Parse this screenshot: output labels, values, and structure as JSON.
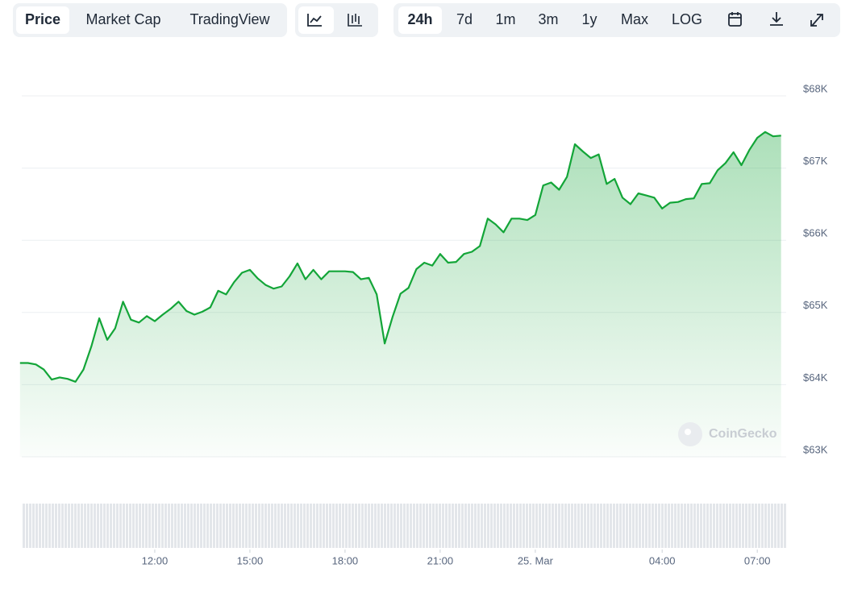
{
  "toolbar": {
    "views": [
      "Price",
      "Market Cap",
      "TradingView"
    ],
    "ranges": [
      "24h",
      "7d",
      "1m",
      "3m",
      "1y",
      "Max",
      "LOG"
    ]
  },
  "chart_data": {
    "type": "area",
    "watermark": "CoinGecko",
    "x": [
      7.75,
      8,
      8.25,
      8.5,
      8.75,
      9,
      9.25,
      9.5,
      9.75,
      10,
      10.25,
      10.5,
      10.75,
      11,
      11.25,
      11.5,
      11.75,
      12,
      12.25,
      12.5,
      12.75,
      13,
      13.25,
      13.5,
      13.75,
      14,
      14.25,
      14.5,
      14.75,
      15,
      15.25,
      15.5,
      15.75,
      16,
      16.25,
      16.5,
      16.75,
      17,
      17.25,
      17.5,
      17.75,
      18,
      18.25,
      18.5,
      18.75,
      19,
      19.25,
      19.5,
      19.75,
      20,
      20.25,
      20.5,
      20.75,
      21,
      21.25,
      21.5,
      21.75,
      22,
      22.25,
      22.5,
      22.75,
      23,
      23.25,
      23.5,
      23.75,
      24,
      24.25,
      24.5,
      24.75,
      25,
      25.25,
      25.5,
      25.75,
      26,
      26.25,
      26.5,
      26.75,
      27,
      27.25,
      27.5,
      27.75,
      28,
      28.25,
      28.5,
      28.75,
      29,
      29.25,
      29.5,
      29.75,
      30,
      30.25,
      30.5,
      30.75,
      31,
      31.25,
      31.5,
      31.75
    ],
    "series": [
      {
        "color": "#13a538",
        "values": [
          64300,
          64300,
          64280,
          64210,
          64070,
          64100,
          64080,
          64040,
          64210,
          64530,
          64920,
          64620,
          64780,
          65150,
          64900,
          64860,
          64950,
          64880,
          64970,
          65050,
          65150,
          65020,
          64970,
          65010,
          65070,
          65300,
          65250,
          65420,
          65550,
          65590,
          65470,
          65380,
          65330,
          65360,
          65500,
          65680,
          65460,
          65590,
          65460,
          65570,
          65570,
          65570,
          65560,
          65460,
          65480,
          65250,
          64570,
          64940,
          65260,
          65340,
          65600,
          65690,
          65650,
          65810,
          65690,
          65700,
          65810,
          65840,
          65920,
          66300,
          66220,
          66110,
          66300,
          66300,
          66280,
          66350,
          66760,
          66800,
          66700,
          66880,
          67330,
          67230,
          67140,
          67190,
          66780,
          66850,
          66590,
          66500,
          66650,
          66620,
          66590,
          66440,
          66520,
          66530,
          66570,
          66580,
          66780,
          66790,
          66970,
          67070,
          67220,
          67040,
          67250,
          67420,
          67500,
          67440,
          67450
        ]
      }
    ],
    "xlim": [
      7.75,
      31.85
    ],
    "xticks": [
      {
        "value": 12,
        "label": "12:00"
      },
      {
        "value": 15,
        "label": "15:00"
      },
      {
        "value": 18,
        "label": "18:00"
      },
      {
        "value": 21,
        "label": "21:00"
      },
      {
        "value": 24,
        "label": "25. Mar"
      },
      {
        "value": 28,
        "label": "04:00"
      },
      {
        "value": 31,
        "label": "07:00"
      }
    ],
    "ylim": [
      63000,
      68000
    ],
    "yticks": [
      {
        "value": 63000,
        "label": "$63K"
      },
      {
        "value": 64000,
        "label": "$64K"
      },
      {
        "value": 65000,
        "label": "$65K"
      },
      {
        "value": 66000,
        "label": "$66K"
      },
      {
        "value": 67000,
        "label": "$67K"
      },
      {
        "value": 68000,
        "label": "$68K"
      }
    ],
    "grid": true
  }
}
